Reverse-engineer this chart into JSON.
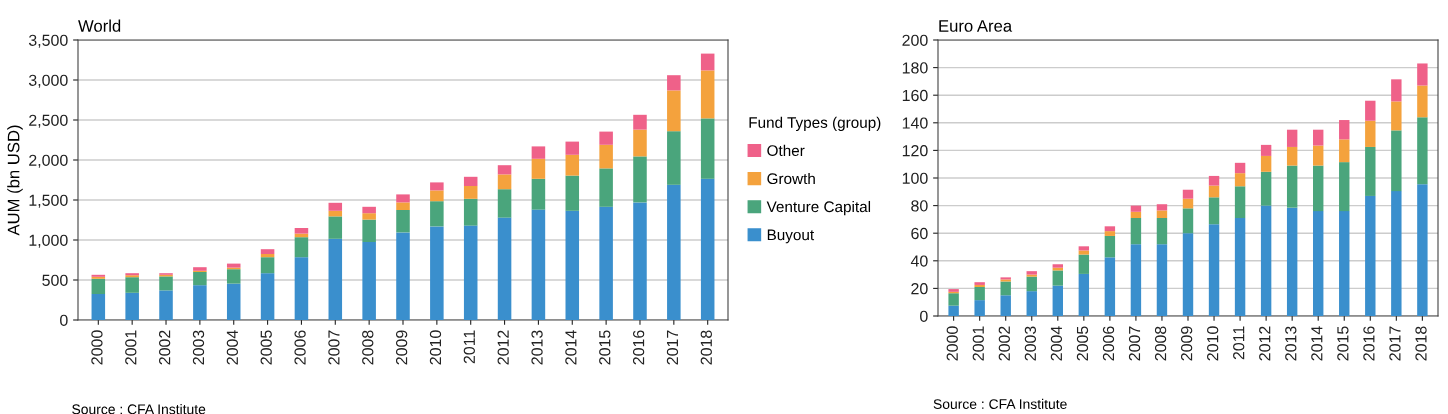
{
  "chart_data": [
    {
      "type": "bar",
      "title": "World",
      "ylabel": "AUM (bn USD)",
      "legend_title": "Fund Types (group)",
      "stacked": true,
      "grid": "y",
      "legend": "right",
      "categories": [
        "2000",
        "2001",
        "2002",
        "2003",
        "2004",
        "2005",
        "2006",
        "2007",
        "2008",
        "2009",
        "2010",
        "2011",
        "2012",
        "2013",
        "2014",
        "2015",
        "2016",
        "2017",
        "2018"
      ],
      "ylim": [
        0,
        3500
      ],
      "yticks": [
        0,
        {
          "value": 500,
          "label": "500"
        },
        {
          "value": 1000,
          "label": "1,000"
        },
        {
          "value": 1500,
          "label": "1,500"
        },
        {
          "value": 2000,
          "label": "2,000"
        },
        {
          "value": 2500,
          "label": "2,500"
        },
        {
          "value": 3000,
          "label": "3,000"
        },
        {
          "value": 3500,
          "label": "3,500"
        }
      ],
      "series": [
        {
          "name": "Buyout",
          "color": "#3a8fcd",
          "values": [
            325,
            340,
            370,
            435,
            455,
            585,
            785,
            1015,
            975,
            1095,
            1170,
            1180,
            1280,
            1380,
            1365,
            1415,
            1470,
            1690,
            1765
          ]
        },
        {
          "name": "Venture Capital",
          "color": "#4aa57c",
          "values": [
            190,
            195,
            175,
            165,
            180,
            200,
            250,
            280,
            280,
            280,
            315,
            335,
            355,
            385,
            440,
            480,
            575,
            670,
            755
          ]
        },
        {
          "name": "Growth",
          "color": "#f4a23d",
          "values": [
            25,
            25,
            20,
            15,
            20,
            40,
            45,
            70,
            80,
            95,
            135,
            160,
            185,
            250,
            260,
            295,
            335,
            510,
            600
          ]
        },
        {
          "name": "Other",
          "color": "#ef6189",
          "values": [
            25,
            25,
            20,
            45,
            50,
            60,
            70,
            100,
            80,
            100,
            100,
            115,
            115,
            155,
            165,
            165,
            185,
            190,
            210
          ]
        }
      ],
      "annotations": [
        "Source : CFA Institute"
      ]
    },
    {
      "type": "bar",
      "title": "Euro Area",
      "stacked": true,
      "grid": "y",
      "categories": [
        "2000",
        "2001",
        "2002",
        "2003",
        "2004",
        "2005",
        "2006",
        "2007",
        "2008",
        "2009",
        "2010",
        "2011",
        "2012",
        "2013",
        "2014",
        "2015",
        "2016",
        "2017",
        "2018"
      ],
      "ylim": [
        0,
        200
      ],
      "yticks": [
        0,
        20,
        40,
        60,
        80,
        100,
        120,
        140,
        160,
        180,
        200
      ],
      "series": [
        {
          "color": "#3a8fcd",
          "values": [
            7.5,
            11.5,
            15,
            18,
            22,
            30.5,
            42.5,
            52,
            52,
            60,
            66.5,
            71,
            80,
            78.5,
            76,
            76,
            87,
            90.5,
            95.5
          ]
        },
        {
          "color": "#4aa57c",
          "values": [
            9,
            9.5,
            10,
            10.5,
            11,
            14,
            15.5,
            19,
            19,
            18,
            19.5,
            23,
            24.5,
            30.5,
            33,
            35.5,
            35.5,
            44,
            48.5
          ]
        },
        {
          "color": "#f4a23d",
          "values": [
            1,
            1.5,
            1.5,
            1.5,
            2,
            3,
            3.5,
            4.5,
            5.5,
            7,
            8.5,
            9.5,
            11.5,
            13.5,
            14.5,
            16.5,
            19,
            21,
            23
          ]
        },
        {
          "color": "#ef6189",
          "values": [
            2,
            2,
            1.5,
            2.5,
            2.5,
            3,
            3.5,
            4.5,
            4.5,
            6.5,
            7,
            7.5,
            8,
            12.5,
            11.5,
            14,
            14.5,
            16,
            16
          ]
        }
      ],
      "annotations": [
        "Source : CFA Institute"
      ]
    }
  ]
}
